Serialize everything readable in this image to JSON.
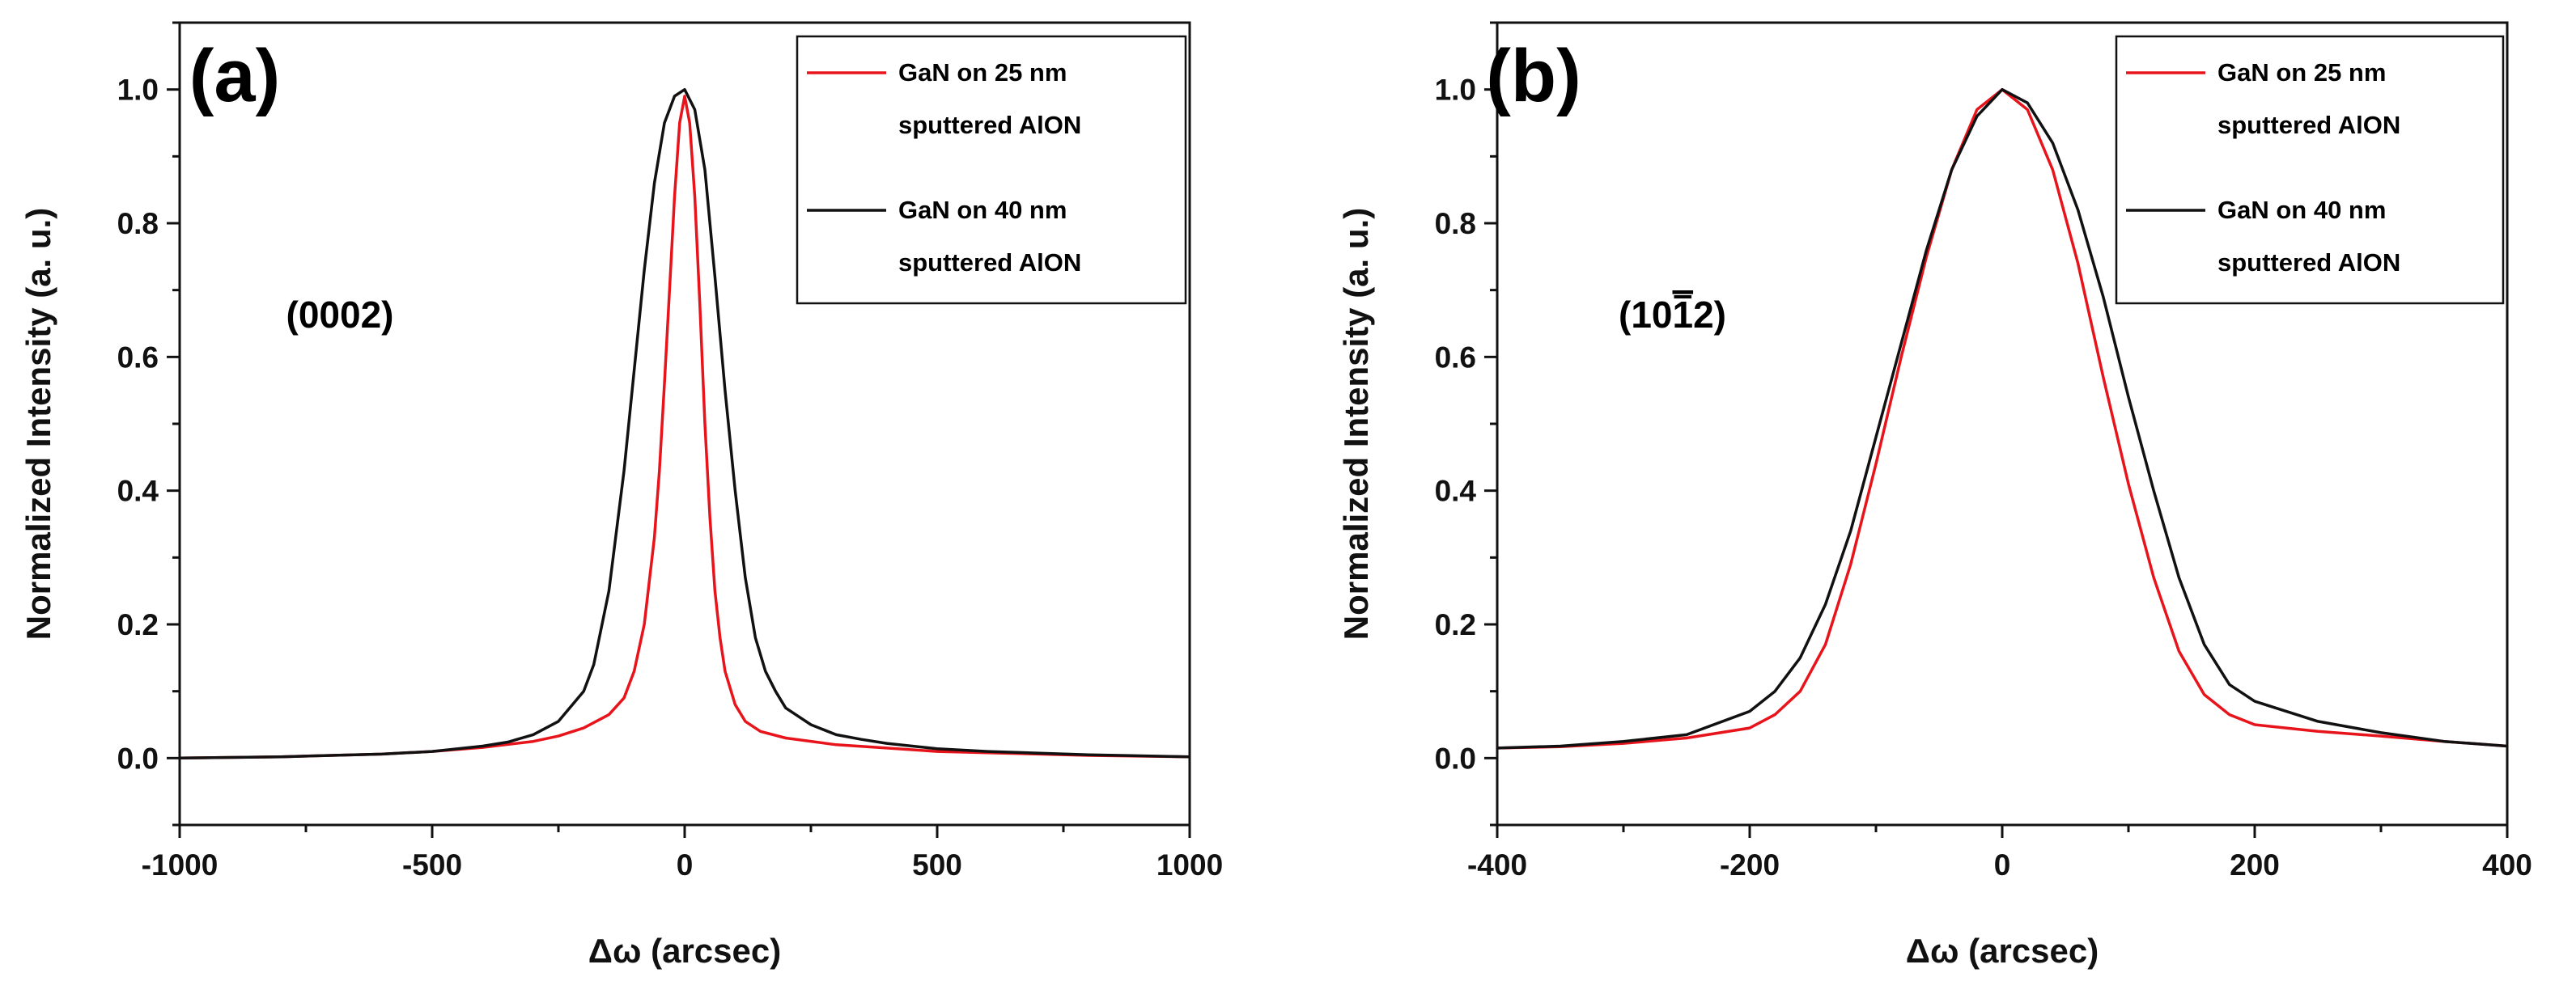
{
  "chart_data": [
    {
      "type": "line",
      "panel_label": "(a)",
      "annotation": "(0002)",
      "xlabel": "Δω (arcsec)",
      "ylabel": "Normalized Intensity (a. u.)",
      "xlim": [
        -1000,
        1000
      ],
      "ylim": [
        -0.1,
        1.1
      ],
      "xticks": [
        -1000,
        -500,
        0,
        500,
        1000
      ],
      "xtick_labels": [
        "-1000",
        "-500",
        "0",
        "500",
        "1000"
      ],
      "yticks": [
        0.0,
        0.2,
        0.4,
        0.6,
        0.8,
        1.0
      ],
      "ytick_labels": [
        "0.0",
        "0.2",
        "0.4",
        "0.6",
        "0.8",
        "1.0"
      ],
      "legend_position": "top-right",
      "series": [
        {
          "name": "GaN on 25 nm sputtered AlON",
          "legend_lines": [
            "GaN on 25 nm",
            "sputtered AlON"
          ],
          "color": "#e8141c",
          "x": [
            -1000,
            -800,
            -600,
            -500,
            -400,
            -300,
            -250,
            -200,
            -150,
            -120,
            -100,
            -80,
            -60,
            -50,
            -40,
            -30,
            -20,
            -10,
            0,
            10,
            20,
            30,
            40,
            50,
            60,
            70,
            80,
            100,
            120,
            150,
            200,
            300,
            400,
            500,
            600,
            800,
            1000
          ],
          "y": [
            0.0,
            0.002,
            0.006,
            0.01,
            0.016,
            0.025,
            0.033,
            0.045,
            0.065,
            0.09,
            0.13,
            0.2,
            0.33,
            0.43,
            0.56,
            0.7,
            0.84,
            0.95,
            0.99,
            0.95,
            0.84,
            0.68,
            0.5,
            0.36,
            0.25,
            0.18,
            0.13,
            0.08,
            0.055,
            0.04,
            0.03,
            0.02,
            0.015,
            0.01,
            0.008,
            0.004,
            0.002
          ]
        },
        {
          "name": "GaN on 40 nm sputtered AlON",
          "legend_lines": [
            "GaN on 40 nm",
            "sputtered AlON"
          ],
          "color": "#111111",
          "x": [
            -1000,
            -800,
            -600,
            -500,
            -400,
            -350,
            -300,
            -250,
            -200,
            -180,
            -150,
            -120,
            -100,
            -80,
            -60,
            -40,
            -20,
            0,
            20,
            40,
            60,
            80,
            100,
            120,
            140,
            160,
            180,
            200,
            250,
            300,
            350,
            400,
            500,
            600,
            800,
            1000
          ],
          "y": [
            0.0,
            0.002,
            0.006,
            0.01,
            0.018,
            0.024,
            0.035,
            0.055,
            0.1,
            0.14,
            0.25,
            0.43,
            0.58,
            0.73,
            0.86,
            0.95,
            0.99,
            1.0,
            0.97,
            0.88,
            0.72,
            0.55,
            0.4,
            0.27,
            0.18,
            0.13,
            0.1,
            0.075,
            0.05,
            0.035,
            0.028,
            0.022,
            0.014,
            0.01,
            0.005,
            0.002
          ]
        }
      ]
    },
    {
      "type": "line",
      "panel_label": "(b)",
      "annotation": "(1012)",
      "annotation_parts": [
        "(10",
        "1",
        "2)"
      ],
      "xlabel": "Δω (arcsec)",
      "ylabel": "Normalized Intensity (a. u.)",
      "xlim": [
        -400,
        400
      ],
      "ylim": [
        -0.1,
        1.1
      ],
      "xticks": [
        -400,
        -200,
        0,
        200,
        400
      ],
      "xtick_labels": [
        "-400",
        "-200",
        "0",
        "200",
        "400"
      ],
      "yticks": [
        0.0,
        0.2,
        0.4,
        0.6,
        0.8,
        1.0
      ],
      "ytick_labels": [
        "0.0",
        "0.2",
        "0.4",
        "0.6",
        "0.8",
        "1.0"
      ],
      "legend_position": "top-right",
      "series": [
        {
          "name": "GaN on 25 nm sputtered AlON",
          "legend_lines": [
            "GaN on 25 nm",
            "sputtered AlON"
          ],
          "color": "#e8141c",
          "x": [
            -400,
            -350,
            -300,
            -250,
            -200,
            -180,
            -160,
            -140,
            -120,
            -100,
            -80,
            -60,
            -40,
            -20,
            0,
            20,
            40,
            60,
            80,
            100,
            120,
            140,
            160,
            180,
            200,
            250,
            300,
            350,
            400
          ],
          "y": [
            0.015,
            0.017,
            0.022,
            0.03,
            0.045,
            0.065,
            0.1,
            0.17,
            0.29,
            0.44,
            0.6,
            0.75,
            0.88,
            0.97,
            1.0,
            0.97,
            0.88,
            0.74,
            0.57,
            0.41,
            0.27,
            0.16,
            0.095,
            0.065,
            0.05,
            0.04,
            0.033,
            0.025,
            0.018
          ]
        },
        {
          "name": "GaN on 40 nm sputtered AlON",
          "legend_lines": [
            "GaN on 40 nm",
            "sputtered AlON"
          ],
          "color": "#111111",
          "x": [
            -400,
            -350,
            -300,
            -250,
            -200,
            -180,
            -160,
            -140,
            -120,
            -100,
            -80,
            -60,
            -40,
            -20,
            0,
            20,
            40,
            60,
            80,
            100,
            120,
            140,
            160,
            180,
            200,
            250,
            300,
            350,
            400
          ],
          "y": [
            0.015,
            0.018,
            0.025,
            0.035,
            0.07,
            0.1,
            0.15,
            0.23,
            0.34,
            0.48,
            0.62,
            0.76,
            0.88,
            0.96,
            1.0,
            0.98,
            0.92,
            0.82,
            0.69,
            0.54,
            0.4,
            0.27,
            0.17,
            0.11,
            0.085,
            0.055,
            0.038,
            0.025,
            0.018
          ]
        }
      ]
    }
  ]
}
